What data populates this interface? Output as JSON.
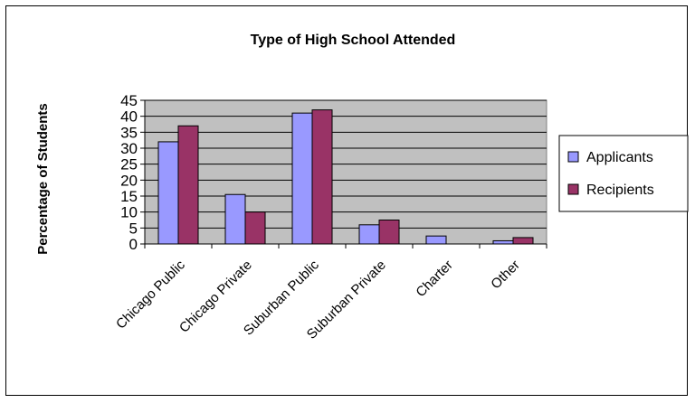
{
  "chart_data": {
    "type": "bar",
    "title": "Type of High School Attended",
    "xlabel": "",
    "ylabel": "Percentage of Students",
    "ylim": [
      0,
      45
    ],
    "yticks": [
      0,
      5,
      10,
      15,
      20,
      25,
      30,
      35,
      40,
      45
    ],
    "grid": true,
    "legend_position": "right",
    "categories": [
      "Chicago Public",
      "Chicago Private",
      "Suburban Public",
      "Suburban Private",
      "Charter",
      "Other"
    ],
    "series": [
      {
        "name": "Applicants",
        "color": "#9999FF",
        "values": [
          32,
          15.5,
          41,
          6,
          2.5,
          1
        ]
      },
      {
        "name": "Recipients",
        "color": "#993366",
        "values": [
          37,
          10,
          42,
          7.5,
          0,
          2
        ]
      }
    ],
    "plot_background": "#C0C0C0"
  }
}
